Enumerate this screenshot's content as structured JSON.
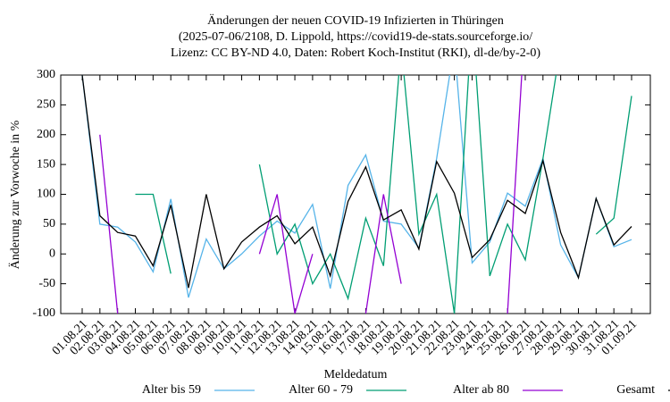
{
  "chart_data": {
    "type": "line",
    "title": [
      "Änderungen der neuen COVID-19 Infizierten in Thüringen",
      "(2025-07-06/2108, D. Lippold, https://covid19-de-stats.sourceforge.io/",
      "Lizenz: CC BY-ND 4.0, Daten: Robert Koch-Institut (RKI), dl-de/by-2-0)"
    ],
    "x_label": "Meldedatum",
    "y_label": "Änderung zur Vorwoche in %",
    "categories": [
      "01.08.21",
      "02.08.21",
      "03.08.21",
      "04.08.21",
      "05.08.21",
      "06.08.21",
      "07.08.21",
      "08.08.21",
      "09.08.21",
      "10.08.21",
      "11.08.21",
      "12.08.21",
      "13.08.21",
      "14.08.21",
      "15.08.21",
      "16.08.21",
      "17.08.21",
      "18.08.21",
      "19.08.21",
      "20.08.21",
      "21.08.21",
      "22.08.21",
      "23.08.21",
      "24.08.21",
      "25.08.21",
      "26.08.21",
      "27.08.21",
      "28.08.21",
      "29.08.21",
      "30.08.21",
      "31.08.21",
      "01.09.21"
    ],
    "ylim": [
      -100,
      300
    ],
    "yticks": [
      -100,
      -50,
      0,
      50,
      100,
      150,
      200,
      250,
      300
    ],
    "series": [
      {
        "name": "Alter bis 59",
        "color": "#56b4e9",
        "values": [
          300,
          50,
          45,
          20,
          -30,
          92,
          -73,
          25,
          -25,
          0,
          30,
          55,
          35,
          83,
          -58,
          115,
          166,
          55,
          50,
          10,
          160,
          350,
          -15,
          20,
          102,
          80,
          160,
          15,
          -40,
          93,
          12,
          24
        ]
      },
      {
        "name": "Alter 60 - 79",
        "color": "#009e73",
        "values": [
          null,
          null,
          null,
          100,
          100,
          -33,
          null,
          null,
          null,
          null,
          150,
          0,
          50,
          -50,
          0,
          -75,
          60,
          -20,
          350,
          33,
          100,
          -100,
          400,
          -37,
          50,
          -10,
          160,
          350,
          null,
          33,
          60,
          265
        ]
      },
      {
        "name": "Alter ab 80",
        "color": "#9400d3",
        "values": [
          null,
          200,
          -100,
          null,
          null,
          null,
          null,
          null,
          null,
          null,
          0,
          100,
          -100,
          0,
          null,
          null,
          -100,
          100,
          -50,
          null,
          null,
          null,
          null,
          null,
          -100,
          400,
          null,
          null,
          null,
          null,
          null,
          null
        ]
      },
      {
        "name": "Gesamt",
        "color": "#000000",
        "values": [
          300,
          64,
          36,
          30,
          -20,
          82,
          -57,
          100,
          -25,
          20,
          45,
          64,
          17,
          45,
          -37,
          88,
          146,
          57,
          74,
          8,
          155,
          102,
          -6,
          24,
          90,
          68,
          156,
          36,
          -40,
          93,
          15,
          46
        ]
      }
    ]
  }
}
